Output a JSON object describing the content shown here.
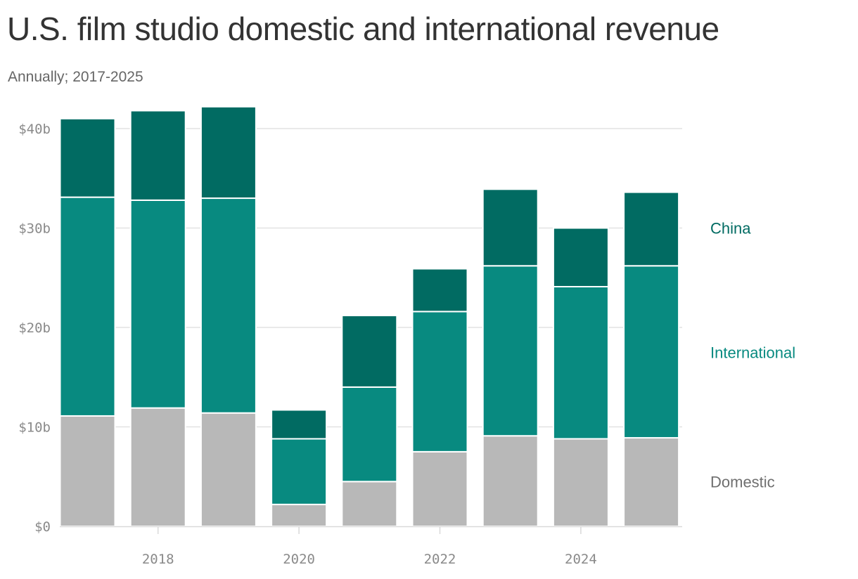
{
  "header": {
    "title": "U.S. film studio domestic and international revenue",
    "subtitle": "Annually; 2017-2025"
  },
  "colors": {
    "Domestic": "#b8b8b8",
    "International": "#088a80",
    "China": "#016b62",
    "grid": "#e2e2e2",
    "axis": "#d9d9d9"
  },
  "chart_data": {
    "type": "bar",
    "stacked": true,
    "categories": [
      2017,
      2018,
      2019,
      2020,
      2021,
      2022,
      2023,
      2024,
      2025
    ],
    "series": [
      {
        "name": "Domestic",
        "values": [
          11.1,
          11.9,
          11.4,
          2.2,
          4.5,
          7.5,
          9.1,
          8.8,
          8.9
        ]
      },
      {
        "name": "International",
        "values": [
          22.0,
          20.9,
          21.6,
          6.6,
          9.5,
          14.1,
          17.1,
          15.3,
          17.3
        ]
      },
      {
        "name": "China",
        "values": [
          7.9,
          9.0,
          9.2,
          2.9,
          7.2,
          4.3,
          7.7,
          5.9,
          7.4
        ]
      }
    ],
    "y_ticks": [
      {
        "value": 0,
        "label": "$0"
      },
      {
        "value": 10,
        "label": "$10b"
      },
      {
        "value": 20,
        "label": "$20b"
      },
      {
        "value": 30,
        "label": "$30b"
      },
      {
        "value": 40,
        "label": "$40b"
      }
    ],
    "x_ticks": [
      {
        "value": 2018,
        "label": "2018"
      },
      {
        "value": 2020,
        "label": "2020"
      },
      {
        "value": 2022,
        "label": "2022"
      },
      {
        "value": 2024,
        "label": "2024"
      }
    ],
    "ylim": [
      0,
      42
    ],
    "grid": true,
    "legend": "right, direct labels",
    "legend_items": [
      {
        "name": "China",
        "anchor_value": 30
      },
      {
        "name": "International",
        "anchor_value": 17.5
      },
      {
        "name": "Domestic",
        "anchor_value": 4.5
      }
    ],
    "xlabel": "",
    "ylabel": ""
  }
}
